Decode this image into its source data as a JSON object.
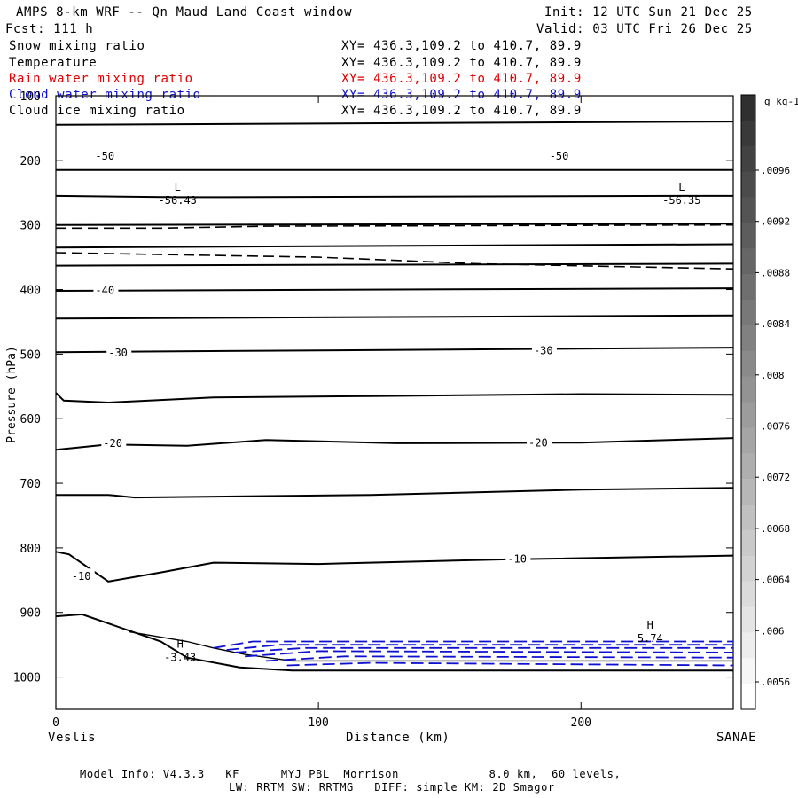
{
  "header": {
    "title": "AMPS 8-km WRF -- Qn Maud Land Coast window",
    "fcst": "Fcst: 111 h",
    "init": "Init: 12 UTC Sun 21 Dec 25",
    "valid": "Valid: 03 UTC Fri 26 Dec 25"
  },
  "legend": [
    {
      "name": "Snow mixing ratio",
      "xy": "XY= 436.3,109.2 to 410.7, 89.9",
      "color": "#000000"
    },
    {
      "name": "Temperature",
      "xy": "XY= 436.3,109.2 to 410.7, 89.9",
      "color": "#000000"
    },
    {
      "name": "Rain water mixing ratio",
      "xy": "XY= 436.3,109.2 to 410.7, 89.9",
      "color": "#e00000"
    },
    {
      "name": "Cloud water mixing ratio",
      "xy": "XY= 436.3,109.2 to 410.7, 89.9",
      "color": "#1010d0"
    },
    {
      "name": "Cloud ice mixing ratio",
      "xy": "XY= 436.3,109.2 to 410.7, 89.9",
      "color": "#000000"
    }
  ],
  "footer": {
    "line1": "Model Info: V4.3.3   KF      MYJ PBL  Morrison             8.0 km,  60 levels,",
    "line2": "LW: RRTM SW: RRTMG   DIFF: simple KM: 2D Smagor"
  },
  "chart_data": {
    "type": "contour",
    "ylabel": "Pressure (hPa)",
    "xlabel": "Distance (km)",
    "xlim": [
      0,
      258
    ],
    "ylim": [
      1050,
      100
    ],
    "x_ticks": [
      0,
      100,
      200
    ],
    "y_ticks": [
      100,
      200,
      300,
      400,
      500,
      600,
      700,
      800,
      900,
      1000
    ],
    "left_endpoint": "Veslis",
    "right_endpoint": "SANAE",
    "colorbar": {
      "unit": "g kg-1",
      "labels": [
        ".0096",
        ".0092",
        ".0088",
        ".0084",
        ".008",
        ".0076",
        ".0072",
        ".0068",
        ".0064",
        ".006",
        ".0056"
      ]
    },
    "isotherms": [
      {
        "label": "-50",
        "points": [
          [
            0,
            145
          ],
          [
            258,
            140
          ]
        ]
      },
      {
        "label": "",
        "points": [
          [
            0,
            215
          ],
          [
            258,
            215
          ]
        ]
      },
      {
        "label": "",
        "points": [
          [
            0,
            255
          ],
          [
            45,
            257
          ],
          [
            60,
            257
          ],
          [
            240,
            255
          ],
          [
            258,
            255
          ]
        ]
      },
      {
        "label": "",
        "points": [
          [
            0,
            300
          ],
          [
            258,
            298
          ]
        ]
      },
      {
        "label": "",
        "points": [
          [
            0,
            335
          ],
          [
            258,
            330
          ]
        ]
      },
      {
        "label": "",
        "points": [
          [
            0,
            363
          ],
          [
            258,
            360
          ]
        ]
      },
      {
        "label": "-40",
        "points": [
          [
            0,
            402
          ],
          [
            258,
            398
          ]
        ]
      },
      {
        "label": "",
        "points": [
          [
            0,
            445
          ],
          [
            258,
            440
          ]
        ]
      },
      {
        "label": "-30",
        "points": [
          [
            0,
            497
          ],
          [
            258,
            490
          ]
        ]
      },
      {
        "label": "",
        "points": [
          [
            0,
            560
          ],
          [
            3,
            572
          ],
          [
            20,
            575
          ],
          [
            60,
            567
          ],
          [
            120,
            565
          ],
          [
            200,
            562
          ],
          [
            258,
            563
          ]
        ]
      },
      {
        "label": "-20",
        "points": [
          [
            0,
            648
          ],
          [
            20,
            640
          ],
          [
            50,
            642
          ],
          [
            80,
            633
          ],
          [
            130,
            638
          ],
          [
            200,
            637
          ],
          [
            258,
            630
          ]
        ]
      },
      {
        "label": "",
        "points": [
          [
            0,
            718
          ],
          [
            20,
            718
          ],
          [
            30,
            722
          ],
          [
            120,
            718
          ],
          [
            200,
            710
          ],
          [
            258,
            707
          ]
        ]
      },
      {
        "label": "-10",
        "points": [
          [
            0,
            806
          ],
          [
            5,
            810
          ],
          [
            20,
            852
          ],
          [
            40,
            838
          ],
          [
            60,
            823
          ],
          [
            100,
            825
          ],
          [
            170,
            818
          ],
          [
            258,
            812
          ]
        ]
      },
      {
        "label": "",
        "points": [
          [
            0,
            906
          ],
          [
            10,
            903
          ],
          [
            40,
            945
          ],
          [
            50,
            970
          ],
          [
            70,
            985
          ],
          [
            90,
            990
          ],
          [
            120,
            990
          ],
          [
            180,
            990
          ],
          [
            258,
            990
          ]
        ]
      }
    ],
    "temperature_labels": [
      {
        "text": "-50",
        "x": 15,
        "p": 192
      },
      {
        "text": "-50",
        "x": 188,
        "p": 192
      },
      {
        "text": "-40",
        "x": 15,
        "p": 400
      },
      {
        "text": "-30",
        "x": 20,
        "p": 497
      },
      {
        "text": "-30",
        "x": 182,
        "p": 493
      },
      {
        "text": "-20",
        "x": 18,
        "p": 637
      },
      {
        "text": "-20",
        "x": 180,
        "p": 636
      },
      {
        "text": "-10",
        "x": 172,
        "p": 816
      },
      {
        "text": "-10",
        "x": 6,
        "p": 843
      }
    ],
    "extrema": [
      {
        "type": "L",
        "value": "-56.43",
        "x": 45,
        "p": 262
      },
      {
        "type": "L",
        "value": "-56.35",
        "x": 237,
        "p": 262
      },
      {
        "type": "H",
        "value": "-3.43",
        "x": 46,
        "p": 970
      },
      {
        "type": "H",
        "value": "5.74",
        "x": 225,
        "p": 940
      }
    ],
    "snow_contours": [
      {
        "points": [
          [
            0,
            305
          ],
          [
            40,
            305
          ],
          [
            80,
            302
          ],
          [
            258,
            300
          ]
        ]
      },
      {
        "points": [
          [
            0,
            343
          ],
          [
            100,
            350
          ],
          [
            160,
            360
          ],
          [
            258,
            368
          ]
        ]
      }
    ],
    "cloud_water_contours": [
      {
        "points": [
          [
            60,
            955
          ],
          [
            75,
            945
          ],
          [
            258,
            945
          ]
        ]
      },
      {
        "points": [
          [
            65,
            958
          ],
          [
            85,
            950
          ],
          [
            258,
            950
          ]
        ]
      },
      {
        "points": [
          [
            68,
            962
          ],
          [
            95,
            955
          ],
          [
            258,
            955
          ]
        ]
      },
      {
        "points": [
          [
            72,
            968
          ],
          [
            100,
            960
          ],
          [
            258,
            962
          ]
        ]
      },
      {
        "points": [
          [
            80,
            975
          ],
          [
            110,
            968
          ],
          [
            258,
            970
          ]
        ]
      },
      {
        "points": [
          [
            88,
            982
          ],
          [
            120,
            978
          ],
          [
            258,
            982
          ]
        ]
      }
    ],
    "cloud_ice_contours": [
      {
        "points": [
          [
            28,
            930
          ],
          [
            50,
            945
          ],
          [
            60,
            955
          ],
          [
            72,
            965
          ],
          [
            90,
            975
          ],
          [
            258,
            975
          ]
        ]
      }
    ]
  }
}
